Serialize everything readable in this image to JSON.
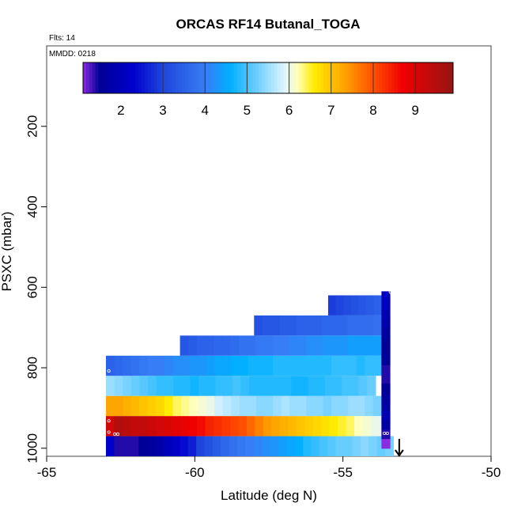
{
  "chart_data": {
    "type": "heatmap",
    "title": "ORCAS RF14 Butanal_TOGA",
    "flights_label": "Flts: 14",
    "date_label": "MMDD: 0218",
    "xlabel": "Latitude (deg N)",
    "ylabel": "PSXC (mbar)",
    "xlim": [
      -65,
      -50
    ],
    "ylim": [
      1020,
      0
    ],
    "xticks": [
      -65,
      -60,
      -55,
      -50
    ],
    "yticks": [
      200,
      400,
      600,
      800,
      1000
    ],
    "colorbar": {
      "range": [
        1.1,
        9.9
      ],
      "ticks": [
        2,
        3,
        4,
        5,
        6,
        7,
        8,
        9
      ],
      "dividers": [
        3,
        4,
        5,
        6,
        7,
        8,
        9
      ]
    },
    "layers": [
      {
        "name": "layer-1000",
        "p_top": 970,
        "p_bot": 1020,
        "lat_start": -63.0,
        "lat_end": -53.3,
        "values": [
          2.3,
          1.4,
          1.4,
          1.4,
          1.5,
          1.6,
          1.7,
          2.0,
          2.2,
          2.4,
          2.6,
          3.0,
          3.2,
          3.4,
          3.6,
          3.8,
          3.9,
          4.0,
          4.1,
          4.2,
          4.3,
          4.4,
          4.5,
          4.6,
          4.8,
          4.9,
          5.0,
          5.1,
          5.2,
          5.2,
          5.3,
          5.4,
          5.3,
          5.2,
          5.3
        ]
      },
      {
        "name": "layer-950",
        "p_top": 920,
        "p_bot": 970,
        "lat_start": -63.0,
        "lat_end": -53.5,
        "values": [
          9.1,
          9.5,
          9.4,
          9.3,
          9.3,
          9.2,
          9.1,
          9.0,
          8.9,
          8.8,
          8.7,
          8.6,
          8.4,
          8.3,
          8.2,
          8.1,
          8.0,
          7.8,
          7.6,
          7.4,
          7.3,
          7.2,
          7.1,
          7.0,
          6.9,
          6.8,
          6.7,
          6.6,
          6.5,
          6.4,
          6.2,
          6.1,
          6.0,
          6.0
        ]
      },
      {
        "name": "layer-900",
        "p_top": 870,
        "p_bot": 920,
        "lat_start": -63.0,
        "lat_end": -53.7,
        "values": [
          7.3,
          7.3,
          7.2,
          7.1,
          7.0,
          6.9,
          6.8,
          6.6,
          6.4,
          6.3,
          6.2,
          6.1,
          6.0,
          5.8,
          5.7,
          5.6,
          5.5,
          5.5,
          5.4,
          5.4,
          5.5,
          5.6,
          5.5,
          5.5,
          5.4,
          5.4,
          5.3,
          5.4,
          5.4,
          5.5,
          5.5,
          5.4,
          5.3
        ]
      },
      {
        "name": "layer-850",
        "p_top": 820,
        "p_bot": 870,
        "lat_start": -63.0,
        "lat_end": -53.9,
        "values": [
          5.5,
          5.4,
          5.3,
          5.2,
          5.1,
          5.0,
          4.9,
          4.9,
          4.8,
          4.8,
          4.7,
          4.8,
          4.8,
          4.9,
          4.9,
          5.0,
          4.9,
          4.8,
          4.8,
          4.8,
          4.8,
          4.8,
          4.7,
          4.7,
          4.8,
          4.8,
          4.9,
          4.9,
          5.0,
          5.0,
          5.1,
          5.2
        ]
      },
      {
        "name": "layer-800",
        "p_top": 770,
        "p_bot": 820,
        "lat_start": -63.0,
        "lat_end": -53.7,
        "values": [
          3.5,
          3.6,
          3.7,
          3.8,
          3.9,
          4.0,
          4.0,
          4.1,
          4.2,
          4.2,
          4.3,
          4.3,
          4.4,
          4.5,
          4.5,
          4.6,
          4.6,
          4.7,
          4.7,
          4.7,
          4.8,
          4.8,
          4.8,
          4.8,
          4.8,
          4.8,
          4.8,
          4.9,
          4.9,
          4.9,
          4.8,
          4.9,
          4.9
        ]
      },
      {
        "name": "layer-740",
        "p_top": 720,
        "p_bot": 770,
        "lat_start": -60.5,
        "lat_end": -53.7,
        "values": [
          3.3,
          3.4,
          3.5,
          3.5,
          3.6,
          3.6,
          3.7,
          3.8,
          3.8,
          3.9,
          3.9,
          4.0,
          4.0,
          4.1,
          4.1,
          4.2,
          4.2,
          4.3,
          4.3,
          4.3,
          4.4,
          4.4,
          4.4,
          4.4
        ]
      },
      {
        "name": "layer-690",
        "p_top": 670,
        "p_bot": 720,
        "lat_start": -58.0,
        "lat_end": -53.7,
        "values": [
          3.2,
          3.3,
          3.3,
          3.4,
          3.4,
          3.5,
          3.5,
          3.5,
          3.6,
          3.6,
          3.6,
          3.7,
          3.7,
          3.7,
          3.8
        ]
      },
      {
        "name": "layer-640",
        "p_top": 620,
        "p_bot": 670,
        "lat_start": -55.5,
        "lat_end": -53.7,
        "values": [
          2.9,
          3.0,
          3.1,
          3.2,
          3.3,
          3.4,
          3.5
        ]
      },
      {
        "name": "column-right",
        "p_top": 610,
        "p_bot": 1000,
        "lat_start": -53.7,
        "lat_end": -53.4,
        "values": [
          2.1,
          2.1,
          1.9,
          1.8,
          1.6,
          1.5,
          1.5,
          1.5,
          1.4,
          1.4,
          1.5,
          1.6,
          1.7,
          1.9,
          1.7,
          1.4,
          1.1
        ]
      }
    ],
    "sample_points": [
      {
        "lat": -62.9,
        "p": 808
      },
      {
        "lat": -62.9,
        "p": 932
      },
      {
        "lat": -62.9,
        "p": 960
      },
      {
        "lat": -62.7,
        "p": 965
      },
      {
        "lat": -62.6,
        "p": 965
      },
      {
        "lat": -53.6,
        "p": 963
      },
      {
        "lat": -53.5,
        "p": 963
      },
      {
        "lat": -53.4,
        "p": 612
      }
    ],
    "arrow_marker": {
      "lat": -53.1,
      "p": 1020
    }
  }
}
